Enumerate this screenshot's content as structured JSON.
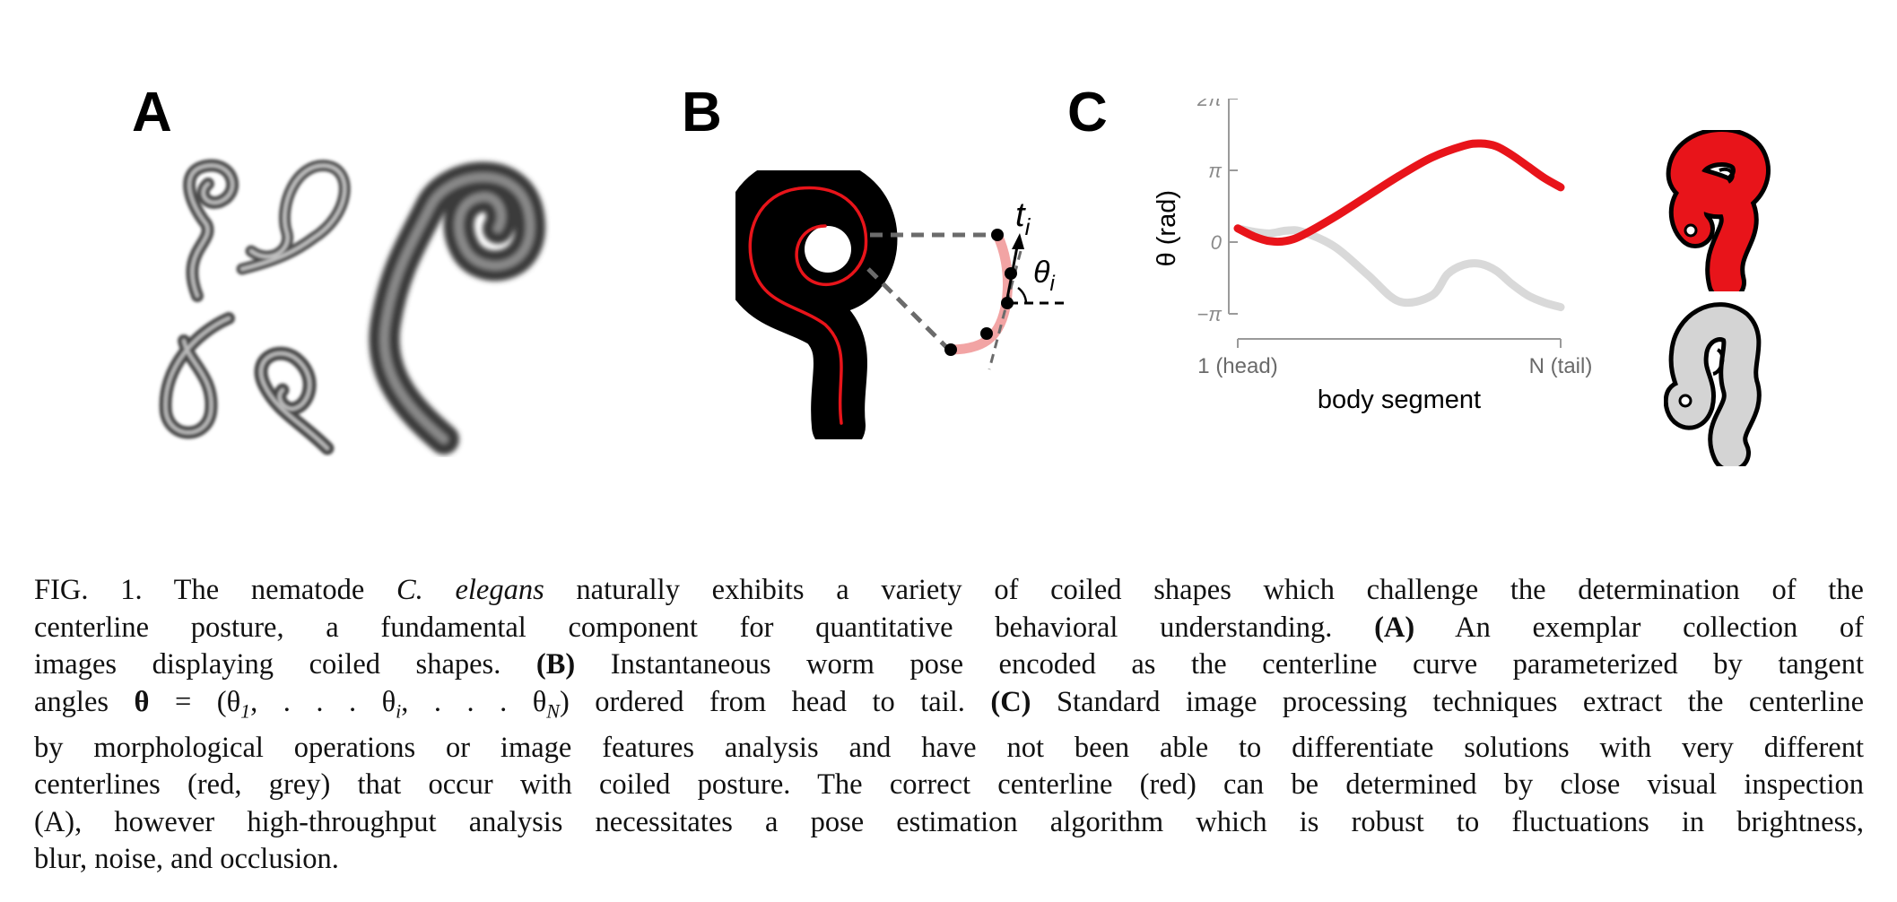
{
  "panels": {
    "a": {
      "letter": "A"
    },
    "b": {
      "letter": "B",
      "tangent_label": "t",
      "tangent_sub": "i",
      "angle_label": "θ",
      "angle_sub": "i"
    },
    "c": {
      "letter": "C"
    }
  },
  "chart_data": {
    "type": "line",
    "title": "",
    "xlabel": "body segment",
    "ylabel": "θ (rad)",
    "x_ticks": [
      "1 (head)",
      "N (tail)"
    ],
    "y_ticks": [
      "2π",
      "π",
      "0",
      "−π"
    ],
    "ylim": [
      "−π",
      "2π"
    ],
    "grid": false,
    "series": [
      {
        "name": "red",
        "color": "#e8141a",
        "x": [
          0,
          0.05,
          0.1,
          0.15,
          0.2,
          0.3,
          0.4,
          0.5,
          0.6,
          0.7,
          0.75,
          0.8,
          0.85,
          0.9,
          0.95,
          1.0
        ],
        "y": [
          0.6,
          0.25,
          0.04,
          0.05,
          0.3,
          1.1,
          2.0,
          2.9,
          3.7,
          4.22,
          4.32,
          4.2,
          3.8,
          3.3,
          2.8,
          2.4
        ]
      },
      {
        "name": "grey",
        "color": "#d9d9d9",
        "x": [
          0,
          0.05,
          0.1,
          0.15,
          0.2,
          0.3,
          0.4,
          0.5,
          0.6,
          0.65,
          0.7,
          0.75,
          0.8,
          0.85,
          0.9,
          0.95,
          1.0
        ],
        "y": [
          0.6,
          0.45,
          0.38,
          0.5,
          0.45,
          -0.2,
          -1.4,
          -2.6,
          -2.35,
          -1.4,
          -1.0,
          -0.95,
          -1.25,
          -1.85,
          -2.35,
          -2.65,
          -2.85
        ]
      }
    ]
  },
  "caption": {
    "lines": [
      [
        {
          "t": "FIG. 1.  The nematode "
        },
        {
          "t": "C. elegans",
          "i": true
        },
        {
          "t": " naturally exhibits a variety of coiled shapes which challenge the determination of the"
        }
      ],
      [
        {
          "t": "centerline posture, a fundamental component for quantitative behavioral understanding.  "
        },
        {
          "t": "(A)",
          "b": true
        },
        {
          "t": " An exemplar collection of"
        }
      ],
      [
        {
          "t": "images displaying coiled shapes.  "
        },
        {
          "t": "(B)",
          "b": true
        },
        {
          "t": " Instantaneous worm pose encoded as the centerline curve parameterized by tangent"
        }
      ],
      [
        {
          "t": "angles "
        },
        {
          "t": "θ",
          "b": true
        },
        {
          "t": " = (θ"
        },
        {
          "t": "1",
          "sub": true
        },
        {
          "t": ", . . . θ"
        },
        {
          "t": "i",
          "sub": true
        },
        {
          "t": ", . . . θ"
        },
        {
          "t": "N",
          "sub": true
        },
        {
          "t": ") ordered from head to tail.  "
        },
        {
          "t": "(C)",
          "b": true
        },
        {
          "t": " Standard image processing techniques extract the centerline"
        }
      ],
      [
        {
          "t": "by morphological operations or image features analysis and have not been able to differentiate solutions with very different"
        }
      ],
      [
        {
          "t": "centerlines (red, grey) that occur with coiled posture. The correct centerline (red) can be determined by close visual inspection"
        }
      ],
      [
        {
          "t": "(A), however high-throughput analysis necessitates a pose estimation algorithm which is robust to fluctuations in brightness,"
        }
      ],
      [
        {
          "t": "blur, noise, and occlusion."
        }
      ]
    ]
  }
}
